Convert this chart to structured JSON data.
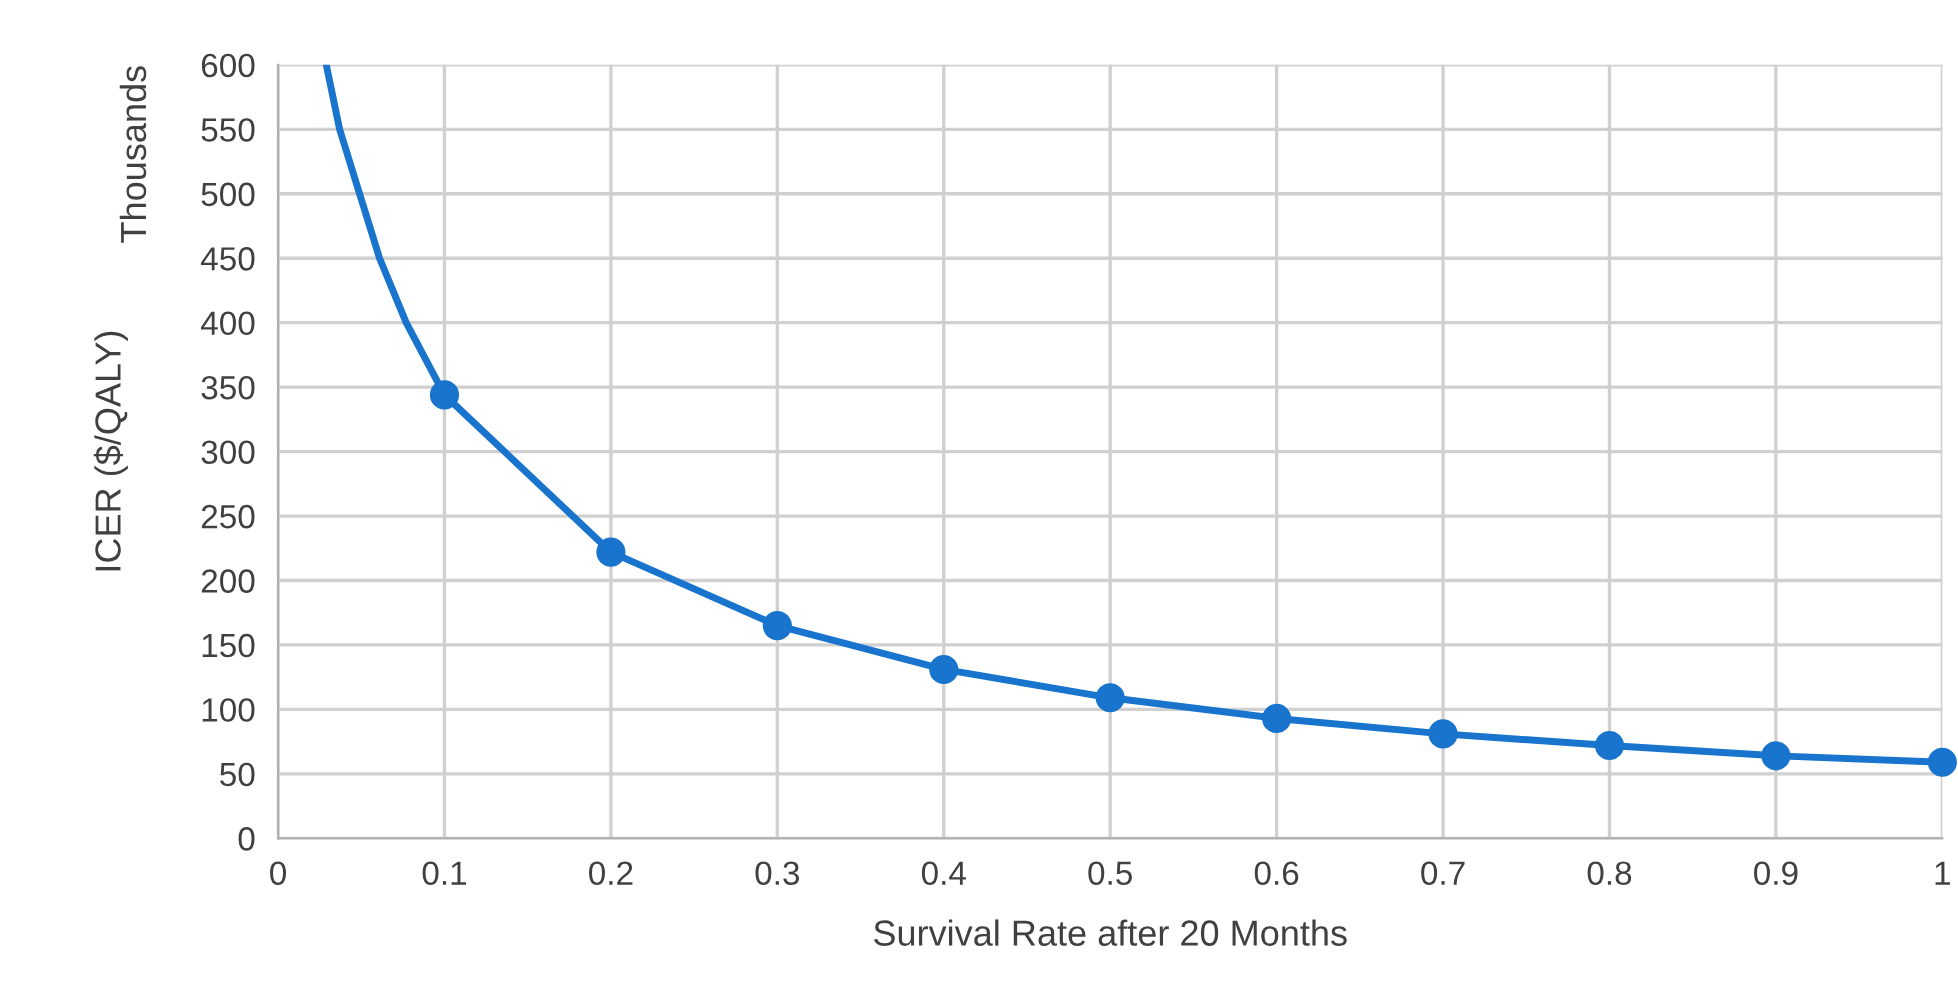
{
  "chart_data": {
    "type": "line",
    "xlabel": "Survival Rate after 20 Months",
    "ylabel": "ICER ($/QALY)",
    "y2label": "Thousands",
    "xlim": [
      0,
      1
    ],
    "xticks": [
      0,
      0.1,
      0.2,
      0.3,
      0.4,
      0.5,
      0.6,
      0.7,
      0.8,
      0.9,
      1
    ],
    "ylim": [
      0,
      600
    ],
    "yticks": [
      0,
      50,
      100,
      150,
      200,
      250,
      300,
      350,
      400,
      450,
      500,
      550,
      600
    ],
    "grid": true,
    "line_style": "solid",
    "series": [
      {
        "marker": "none",
        "color": "#1874cd",
        "x": [
          0.029,
          0.037,
          0.049,
          0.061,
          0.077,
          0.1,
          0.2,
          0.3,
          0.4,
          0.5,
          0.6,
          0.7,
          0.8,
          0.9,
          1
        ],
        "values": [
          600,
          550,
          500,
          450,
          400,
          344,
          222,
          165,
          131,
          109,
          93,
          81,
          72,
          64,
          59
        ]
      },
      {
        "type": "scatter",
        "marker": "circle",
        "color": "#1874cd",
        "x": [
          0.1,
          0.2,
          0.3,
          0.4,
          0.5,
          0.6,
          0.7,
          0.8,
          0.9,
          1
        ],
        "values": [
          344,
          222,
          165,
          131,
          109,
          93,
          81,
          72,
          64,
          59
        ]
      }
    ]
  }
}
